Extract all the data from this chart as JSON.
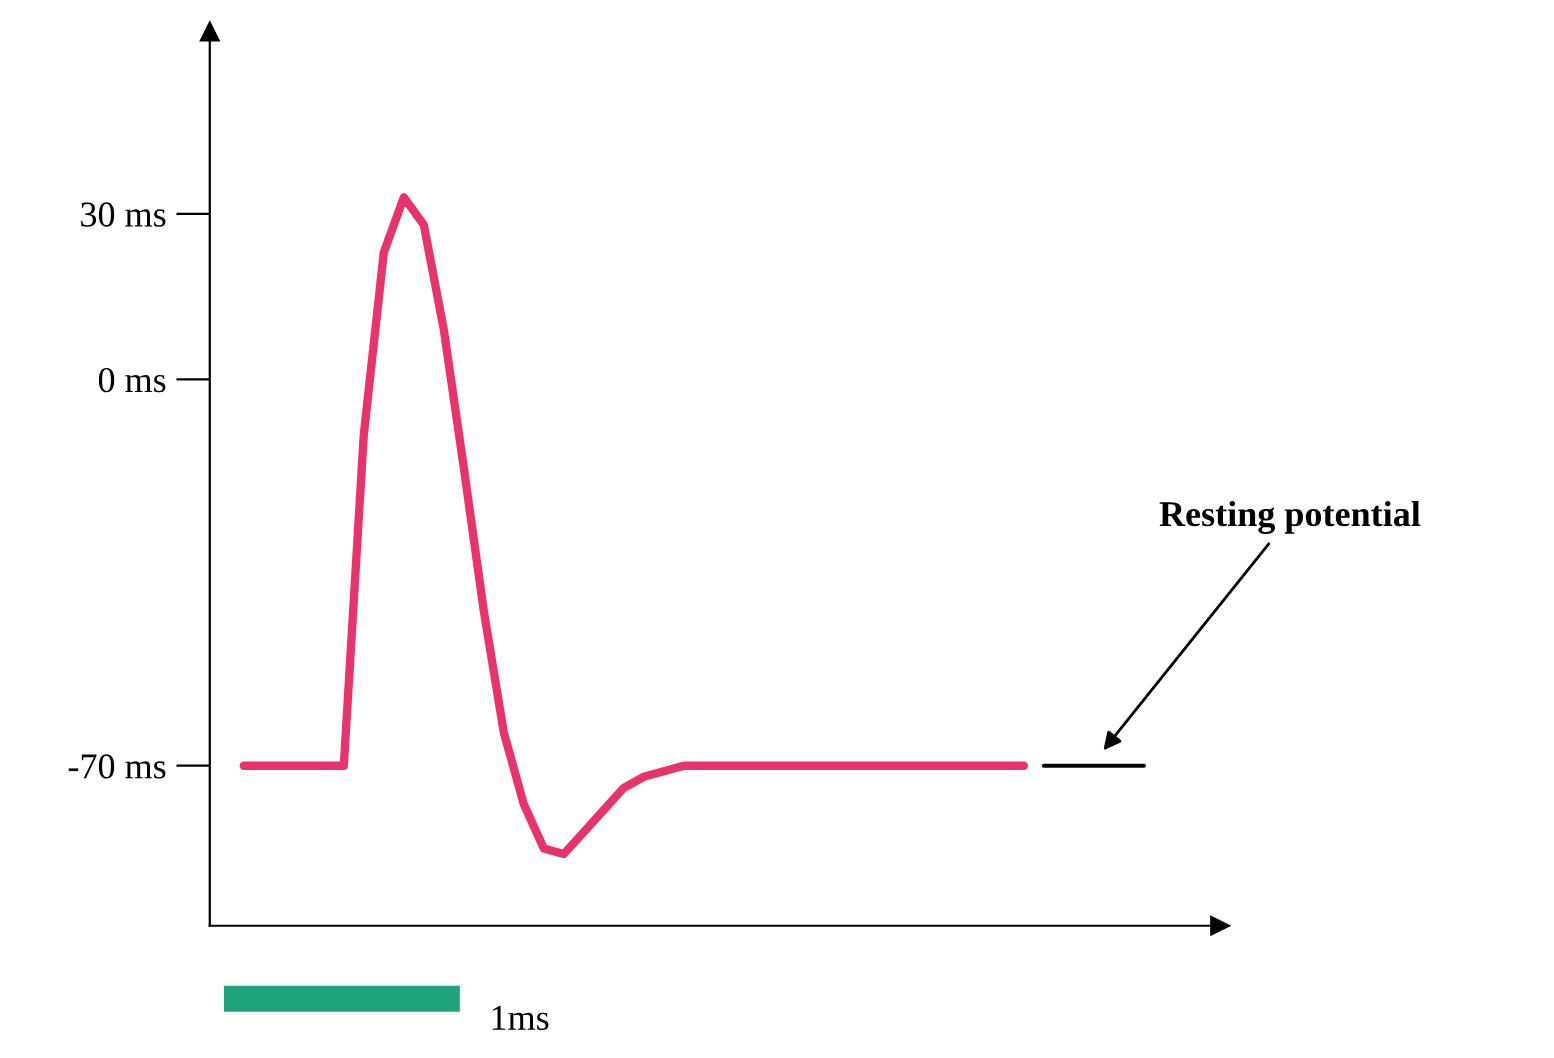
{
  "chart_data": {
    "type": "line",
    "categories": [
      null,
      null,
      null,
      null,
      null,
      null,
      null,
      null,
      null,
      null,
      null,
      null,
      null,
      null,
      null,
      null,
      null,
      null,
      null,
      null,
      null,
      null,
      null,
      null,
      null,
      null,
      null,
      null,
      null,
      null,
      null,
      null,
      null,
      null,
      null,
      null,
      null,
      null,
      null,
      null,
      null,
      null,
      null,
      null,
      null,
      null
    ],
    "series": [
      {
        "color": "#e8336d",
        "values": [
          -70,
          -70,
          -70,
          -70,
          -70,
          -70,
          -10,
          23,
          33,
          28,
          9,
          -16,
          -42,
          -64,
          -77,
          -85,
          -86,
          -82,
          -78,
          -74,
          -72,
          -71,
          -70,
          -70,
          -70,
          -70,
          -70,
          -70,
          -70,
          -70,
          -70,
          -70,
          -70,
          -70,
          -70,
          -70,
          -70,
          -70,
          -70,
          -70,
          null,
          null,
          null,
          null,
          null,
          null
        ]
      },
      {
        "color": "#000000",
        "values": [
          null,
          null,
          null,
          null,
          null,
          null,
          null,
          null,
          null,
          null,
          null,
          null,
          null,
          null,
          null,
          null,
          null,
          null,
          null,
          null,
          null,
          null,
          null,
          null,
          null,
          null,
          null,
          null,
          null,
          null,
          null,
          null,
          null,
          null,
          null,
          null,
          null,
          null,
          null,
          null,
          -70,
          -70,
          -70,
          -70,
          -70,
          -70
        ]
      }
    ],
    "ylim": [
      -99,
      63
    ],
    "yticks": [
      {
        "value": 30,
        "label": "30 ms"
      },
      {
        "value": 0,
        "label": "0 ms"
      },
      {
        "value": -70,
        "label": "-70 ms"
      }
    ],
    "tick_labels": "y",
    "grid": false,
    "legend": false,
    "marker": "none",
    "line_style": "solid",
    "annotations": [
      "Resting potential",
      "1ms"
    ]
  }
}
